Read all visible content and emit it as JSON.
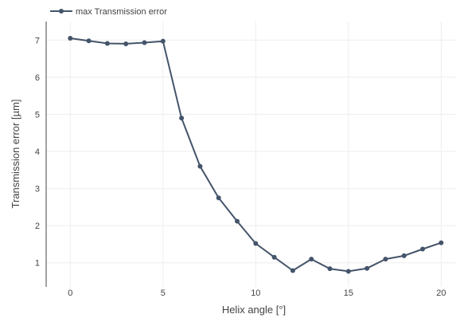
{
  "chart_data": {
    "type": "line",
    "xlabel": "Helix angle [°]",
    "ylabel": "Transmission error [µm]",
    "xlim": [
      -1.3,
      20.8
    ],
    "ylim": [
      0.35,
      7.5
    ],
    "xticks": [
      0,
      5,
      10,
      15,
      20
    ],
    "yticks": [
      1,
      2,
      3,
      4,
      5,
      6,
      7
    ],
    "grid": true,
    "legend_position": "top-left",
    "series": [
      {
        "name": "max Transmission error",
        "color": "#44546a",
        "x": [
          0,
          1,
          2,
          3,
          4,
          5,
          6,
          7,
          8,
          9,
          10,
          11,
          12,
          13,
          14,
          15,
          16,
          17,
          18,
          19,
          20
        ],
        "y": [
          7.05,
          6.98,
          6.91,
          6.9,
          6.93,
          6.97,
          4.9,
          3.6,
          2.75,
          2.12,
          1.52,
          1.15,
          0.79,
          1.1,
          0.84,
          0.77,
          0.85,
          1.1,
          1.19,
          1.37,
          1.54
        ]
      }
    ]
  }
}
